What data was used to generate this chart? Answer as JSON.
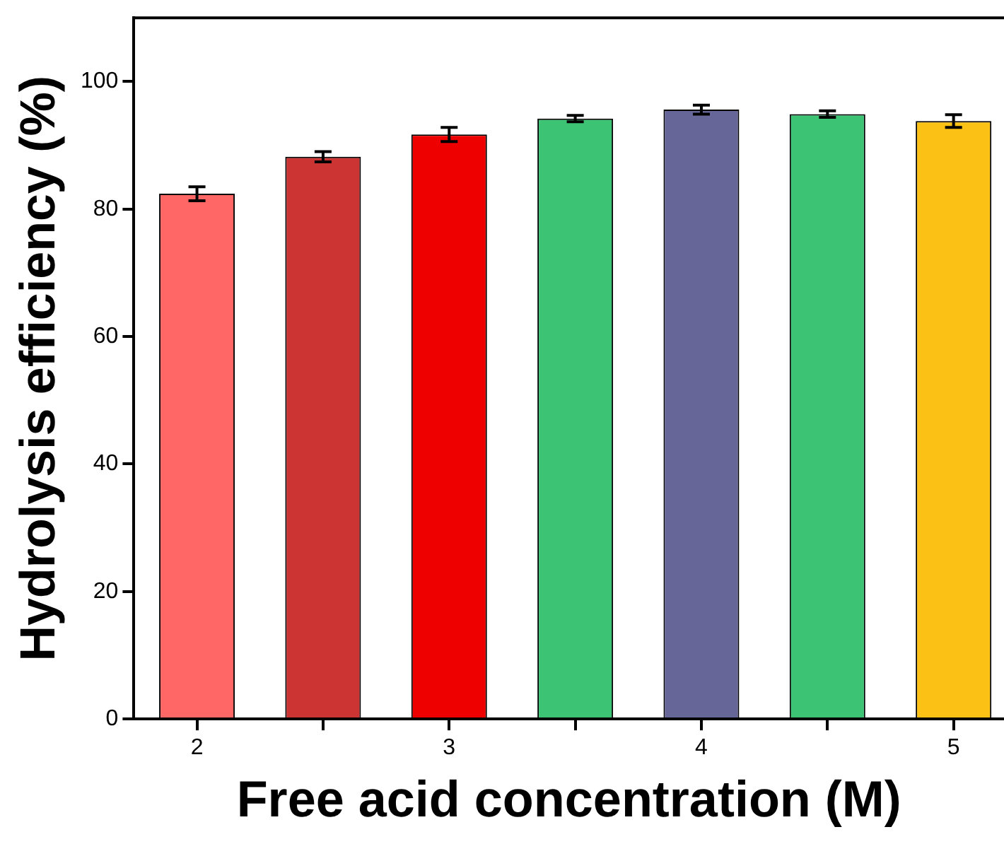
{
  "chart_data": {
    "type": "bar",
    "xlabel": "Free acid concentration (M)",
    "ylabel": "Hydrolysis efficiency (%)",
    "x": [
      2,
      2.5,
      3,
      3.5,
      4,
      4.5,
      5
    ],
    "values": [
      82.4,
      88.2,
      91.7,
      94.2,
      95.6,
      94.9,
      93.8
    ],
    "errors": [
      1.1,
      0.8,
      1.1,
      0.5,
      0.7,
      0.5,
      1.0
    ],
    "colors": [
      "#ff6666",
      "#cc3333",
      "#ee0000",
      "#3cc373",
      "#666699",
      "#3cc373",
      "#fcc115"
    ],
    "xlim": [
      1.75,
      5.2
    ],
    "xticks": [
      2,
      {
        "value": 2.5,
        "label": null
      },
      3,
      {
        "value": 3.5,
        "label": null
      },
      4,
      {
        "value": 4.5,
        "label": null
      },
      5
    ],
    "ylim": [
      0,
      110
    ],
    "yticks": [
      0,
      20,
      40,
      60,
      80,
      100
    ],
    "grid": false,
    "legend": false
  }
}
